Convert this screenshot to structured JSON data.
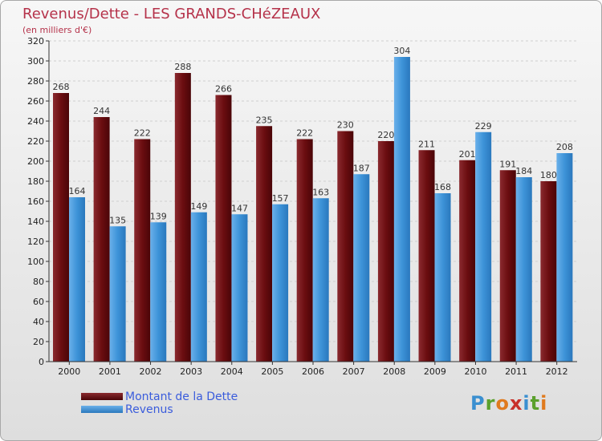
{
  "title": "Revenus/Dette - LES GRANDS-CHéZEAUX",
  "subtitle": "(en milliers d'€)",
  "logo": {
    "text": "Proxiti",
    "letters": [
      "P",
      "r",
      "o",
      "x",
      "i",
      "t",
      "i"
    ]
  },
  "colors": {
    "dette": "#6b0d10",
    "revenus": "#3d93d8"
  },
  "chart_data": {
    "type": "bar",
    "title": "Revenus/Dette - LES GRANDS-CHéZEAUX",
    "ylabel": "(en milliers d'€)",
    "ylim": [
      0,
      320
    ],
    "yticks": [
      0,
      20,
      40,
      60,
      80,
      100,
      120,
      140,
      160,
      180,
      200,
      220,
      240,
      260,
      280,
      300,
      320
    ],
    "grid": true,
    "legend": "bottom-left",
    "categories": [
      "2000",
      "2001",
      "2002",
      "2003",
      "2004",
      "2005",
      "2006",
      "2007",
      "2008",
      "2009",
      "2010",
      "2011",
      "2012"
    ],
    "series": [
      {
        "name": "Montant de la Dette",
        "values": [
          268,
          244,
          222,
          288,
          266,
          235,
          222,
          230,
          220,
          211,
          201,
          191,
          180
        ]
      },
      {
        "name": "Revenus",
        "values": [
          164,
          135,
          139,
          149,
          147,
          157,
          163,
          187,
          304,
          168,
          229,
          184,
          208
        ]
      }
    ]
  }
}
